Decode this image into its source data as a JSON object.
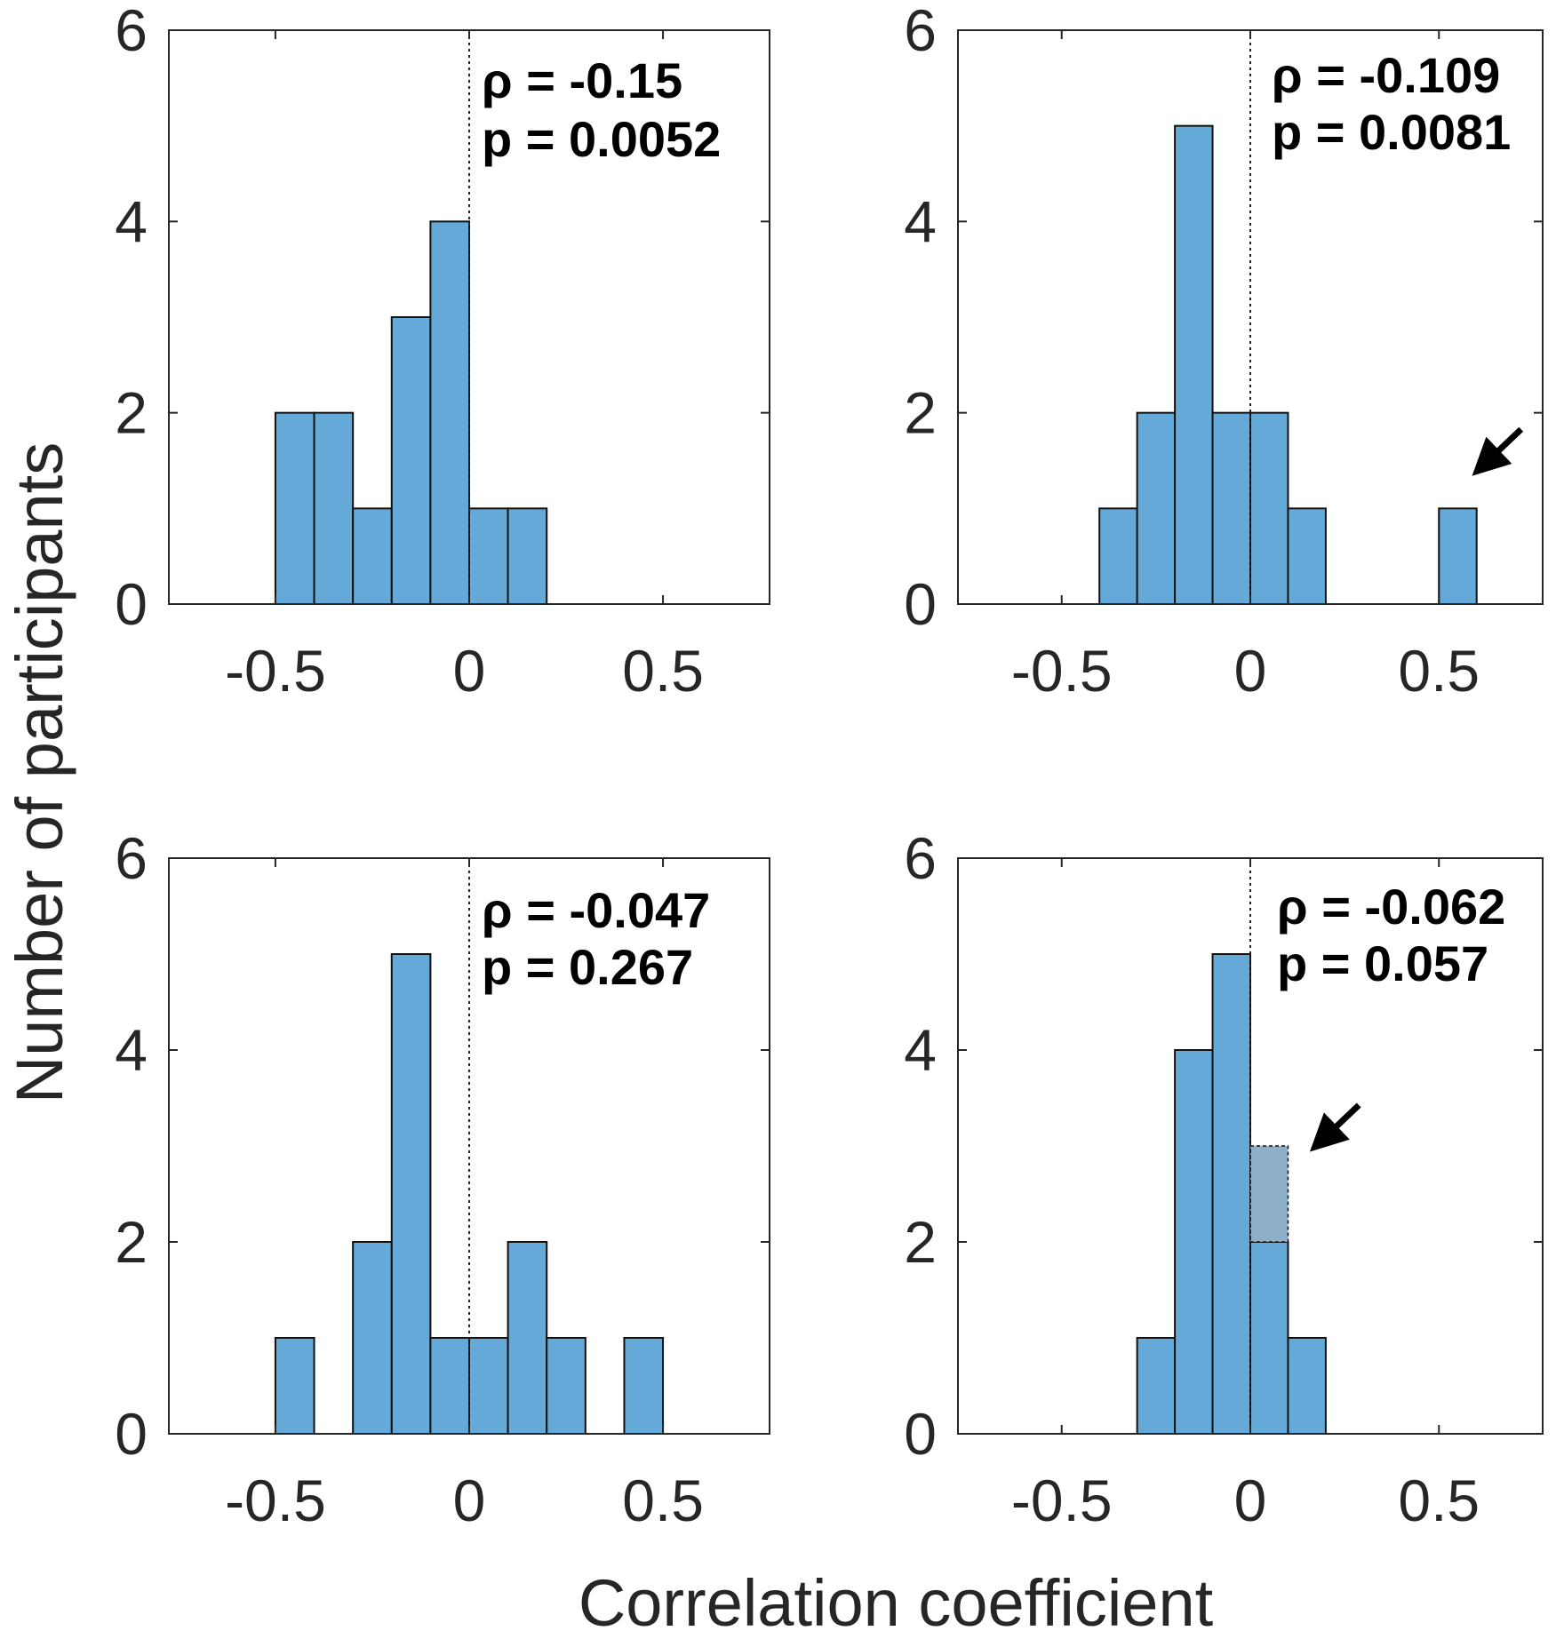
{
  "figure": {
    "ylabel": "Number of participants",
    "xlabel": "Correlation coefficient"
  },
  "chart_data": [
    {
      "type": "bar",
      "panel": "top-left",
      "bin_width": 0.1,
      "xlim": [
        -0.775,
        0.775
      ],
      "ylim": [
        0,
        6
      ],
      "xticks": [
        -0.5,
        0,
        0.5
      ],
      "xtick_labels": [
        "-0.5",
        "0",
        "0.5"
      ],
      "yticks": [
        0,
        2,
        4,
        6
      ],
      "ytick_labels": [
        "0",
        "2",
        "4",
        "6"
      ],
      "reference_line_x": 0,
      "bins": [
        {
          "x0": -0.5,
          "x1": -0.4,
          "count": 2
        },
        {
          "x0": -0.4,
          "x1": -0.3,
          "count": 2
        },
        {
          "x0": -0.3,
          "x1": -0.2,
          "count": 1
        },
        {
          "x0": -0.2,
          "x1": -0.1,
          "count": 3
        },
        {
          "x0": -0.1,
          "x1": 0.0,
          "count": 4
        },
        {
          "x0": 0.0,
          "x1": 0.1,
          "count": 1
        },
        {
          "x0": 0.1,
          "x1": 0.2,
          "count": 1
        }
      ],
      "annotation": {
        "rho_text": "ρ = -0.15",
        "p_text": "p = 0.0052"
      },
      "colors": {
        "bar": "#64a9d7",
        "edge": "#111111"
      }
    },
    {
      "type": "bar",
      "panel": "top-right",
      "bin_width": 0.1,
      "xlim": [
        -0.775,
        0.775
      ],
      "ylim": [
        0,
        6
      ],
      "xticks": [
        -0.5,
        0,
        0.5
      ],
      "xtick_labels": [
        "-0.5",
        "0",
        "0.5"
      ],
      "yticks": [
        0,
        2,
        4,
        6
      ],
      "ytick_labels": [
        "0",
        "2",
        "4",
        "6"
      ],
      "reference_line_x": 0,
      "bins": [
        {
          "x0": -0.4,
          "x1": -0.3,
          "count": 1
        },
        {
          "x0": -0.3,
          "x1": -0.2,
          "count": 2
        },
        {
          "x0": -0.2,
          "x1": -0.1,
          "count": 5
        },
        {
          "x0": -0.1,
          "x1": 0.0,
          "count": 2
        },
        {
          "x0": 0.0,
          "x1": 0.1,
          "count": 2
        },
        {
          "x0": 0.1,
          "x1": 0.2,
          "count": 1
        },
        {
          "x0": 0.5,
          "x1": 0.6,
          "count": 1
        }
      ],
      "arrow_target": {
        "x": 0.6,
        "y": 1.4
      },
      "annotation": {
        "rho_text": "ρ = -0.109",
        "p_text": "p = 0.0081"
      },
      "colors": {
        "bar": "#64a9d7",
        "edge": "#111111"
      }
    },
    {
      "type": "bar",
      "panel": "bottom-left",
      "bin_width": 0.1,
      "xlim": [
        -0.775,
        0.775
      ],
      "ylim": [
        0,
        6
      ],
      "xticks": [
        -0.5,
        0,
        0.5
      ],
      "xtick_labels": [
        "-0.5",
        "0",
        "0.5"
      ],
      "yticks": [
        0,
        2,
        4,
        6
      ],
      "ytick_labels": [
        "0",
        "2",
        "4",
        "6"
      ],
      "reference_line_x": 0,
      "bins": [
        {
          "x0": -0.5,
          "x1": -0.4,
          "count": 1
        },
        {
          "x0": -0.3,
          "x1": -0.2,
          "count": 2
        },
        {
          "x0": -0.2,
          "x1": -0.1,
          "count": 5
        },
        {
          "x0": -0.1,
          "x1": 0.0,
          "count": 1
        },
        {
          "x0": 0.0,
          "x1": 0.1,
          "count": 1
        },
        {
          "x0": 0.1,
          "x1": 0.2,
          "count": 2
        },
        {
          "x0": 0.2,
          "x1": 0.3,
          "count": 1
        },
        {
          "x0": 0.4,
          "x1": 0.5,
          "count": 1
        }
      ],
      "annotation": {
        "rho_text": "ρ = -0.047",
        "p_text": "p = 0.267"
      },
      "colors": {
        "bar": "#64a9d7",
        "edge": "#111111"
      }
    },
    {
      "type": "bar",
      "panel": "bottom-right",
      "bin_width": 0.1,
      "xlim": [
        -0.775,
        0.775
      ],
      "ylim": [
        0,
        6
      ],
      "xticks": [
        -0.5,
        0,
        0.5
      ],
      "xtick_labels": [
        "-0.5",
        "0",
        "0.5"
      ],
      "yticks": [
        0,
        2,
        4,
        6
      ],
      "ytick_labels": [
        "0",
        "2",
        "4",
        "6"
      ],
      "reference_line_x": 0,
      "bins": [
        {
          "x0": -0.3,
          "x1": -0.2,
          "count": 1
        },
        {
          "x0": -0.2,
          "x1": -0.1,
          "count": 4
        },
        {
          "x0": -0.1,
          "x1": 0.0,
          "count": 5
        },
        {
          "x0": 0.0,
          "x1": 0.1,
          "count": 2
        },
        {
          "x0": 0.1,
          "x1": 0.2,
          "count": 1
        }
      ],
      "ghost_bins": [
        {
          "x0": 0.0,
          "x1": 0.1,
          "from": 2,
          "to": 3
        }
      ],
      "arrow_target": {
        "x": 0.17,
        "y": 3.0
      },
      "annotation": {
        "rho_text": "ρ = -0.062",
        "p_text": "p = 0.057"
      },
      "colors": {
        "bar": "#64a9d7",
        "edge": "#111111",
        "ghost": "#8fb0c9"
      }
    }
  ]
}
